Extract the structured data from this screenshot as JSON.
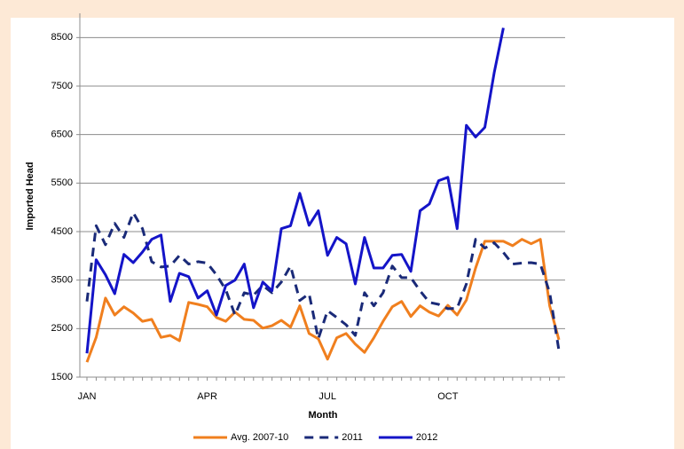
{
  "chart_data": {
    "type": "line",
    "x_label": "Month",
    "y_label": "Imported Head",
    "categories": [
      "JAN",
      null,
      null,
      null,
      null,
      null,
      null,
      null,
      null,
      null,
      null,
      null,
      null,
      "APR",
      null,
      null,
      null,
      null,
      null,
      null,
      null,
      null,
      null,
      null,
      null,
      null,
      "JUL",
      null,
      null,
      null,
      null,
      null,
      null,
      null,
      null,
      null,
      null,
      null,
      null,
      "OCT",
      null,
      null,
      null,
      null,
      null,
      null,
      null,
      null,
      null,
      null,
      null,
      null
    ],
    "ylim": [
      1500,
      9000
    ],
    "yticks": [
      1500,
      2500,
      3500,
      4500,
      5500,
      6500,
      7500,
      8500
    ],
    "grid": true,
    "legend": "bottom",
    "series": [
      {
        "name": "Avg. 2007-10",
        "color": "#f07f1e",
        "style": "solid",
        "values": [
          1810,
          2320,
          3130,
          2780,
          2950,
          2820,
          2650,
          2690,
          2320,
          2360,
          2250,
          3040,
          3000,
          2950,
          2730,
          2650,
          2840,
          2690,
          2670,
          2510,
          2560,
          2670,
          2530,
          2970,
          2400,
          2290,
          1870,
          2310,
          2400,
          2180,
          2010,
          2310,
          2650,
          2950,
          3060,
          2750,
          2970,
          2840,
          2760,
          2980,
          2780,
          3090,
          3750,
          4300,
          4300,
          4300,
          4210,
          4340,
          4250,
          4340,
          2970,
          2270
        ]
      },
      {
        "name": "2011",
        "color": "#1a2a78",
        "style": "dashed",
        "values": [
          3060,
          4620,
          4230,
          4670,
          4380,
          4890,
          4560,
          3880,
          3770,
          3790,
          4010,
          3830,
          3880,
          3850,
          3610,
          3300,
          2780,
          3240,
          3190,
          3390,
          3240,
          3460,
          3790,
          3080,
          3220,
          2290,
          2870,
          2730,
          2580,
          2360,
          3240,
          2970,
          3240,
          3790,
          3550,
          3550,
          3280,
          3040,
          3000,
          2910,
          2920,
          3420,
          4340,
          4160,
          4270,
          4070,
          3830,
          3850,
          3860,
          3830,
          3240,
          2050
        ]
      },
      {
        "name": "2012",
        "color": "#1414c8",
        "style": "solid",
        "values": [
          1990,
          3920,
          3610,
          3220,
          4030,
          3860,
          4080,
          4340,
          4430,
          3060,
          3640,
          3570,
          3130,
          3280,
          2780,
          3390,
          3500,
          3830,
          2930,
          3460,
          3280,
          4560,
          4620,
          5290,
          4630,
          4930,
          4010,
          4380,
          4250,
          3420,
          4380,
          3750,
          3750,
          4010,
          4030,
          3680,
          4930,
          5070,
          5550,
          5620,
          4560,
          6690,
          6450,
          6650,
          7770,
          8700,
          null,
          null,
          null,
          null,
          null,
          null
        ]
      }
    ]
  }
}
